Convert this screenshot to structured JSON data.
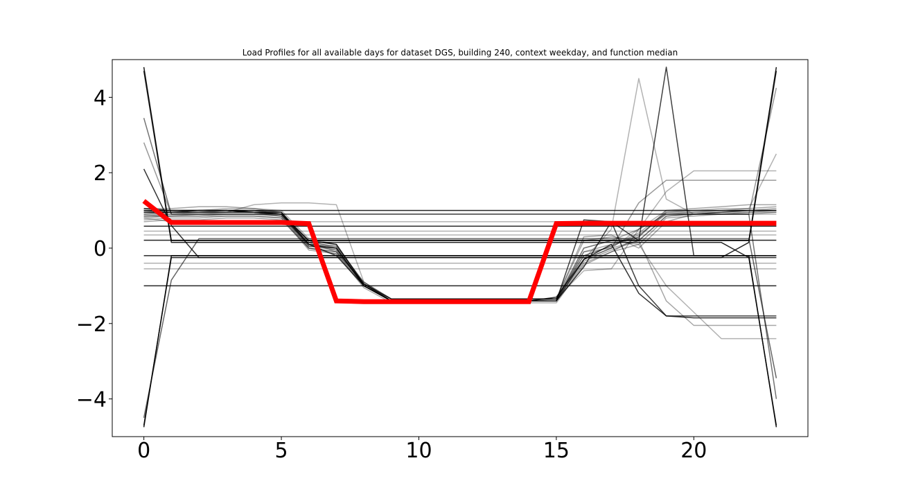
{
  "chart_data": {
    "type": "line",
    "title": "Load Profiles for all available days for dataset DGS, building 240, context weekday, and function median",
    "xlabel": "",
    "ylabel": "",
    "xlim": [
      -1.15,
      24.15
    ],
    "ylim": [
      -5.0,
      5.0
    ],
    "xticks": [
      0,
      5,
      10,
      15,
      20
    ],
    "yticks": [
      4,
      2,
      0,
      -2,
      -4
    ],
    "x_tick_labels": [
      "0",
      "5",
      "10",
      "15",
      "20"
    ],
    "y_tick_labels": [
      "4",
      "2",
      "0",
      "−2",
      "−4"
    ],
    "grid": false,
    "x": [
      0,
      1,
      2,
      3,
      4,
      5,
      6,
      7,
      8,
      9,
      10,
      11,
      12,
      13,
      14,
      15,
      16,
      17,
      18,
      19,
      20,
      21,
      22,
      23
    ],
    "median": {
      "color": "#ff0000",
      "values": [
        1.25,
        0.68,
        0.68,
        0.68,
        0.68,
        0.68,
        0.65,
        -1.4,
        -1.42,
        -1.42,
        -1.42,
        -1.42,
        -1.42,
        -1.42,
        -1.42,
        0.65,
        0.66,
        0.66,
        0.66,
        0.66,
        0.66,
        0.66,
        0.66,
        0.66
      ]
    },
    "series": [
      {
        "opacity": 0.85,
        "values": [
          1.0,
          1.0,
          1.0,
          1.0,
          1.0,
          1.0,
          1.0,
          1.0,
          1.0,
          1.0,
          1.0,
          1.0,
          1.0,
          1.0,
          1.0,
          1.0,
          1.0,
          1.0,
          1.0,
          1.0,
          1.0,
          1.0,
          1.0,
          1.0
        ]
      },
      {
        "opacity": 0.85,
        "values": [
          0.58,
          0.58,
          0.58,
          0.58,
          0.58,
          0.58,
          0.58,
          0.58,
          0.58,
          0.58,
          0.58,
          0.58,
          0.58,
          0.58,
          0.58,
          0.58,
          0.58,
          0.58,
          0.58,
          0.58,
          0.58,
          0.58,
          0.58,
          0.58
        ]
      },
      {
        "opacity": 0.85,
        "values": [
          0.21,
          0.21,
          0.21,
          0.21,
          0.21,
          0.21,
          0.21,
          0.21,
          0.21,
          0.21,
          0.21,
          0.21,
          0.21,
          0.21,
          0.21,
          0.21,
          0.21,
          0.21,
          0.21,
          0.21,
          0.21,
          0.21,
          0.21,
          0.21
        ]
      },
      {
        "opacity": 0.85,
        "values": [
          -0.2,
          -0.2,
          -0.2,
          -0.2,
          -0.2,
          -0.2,
          -0.2,
          -0.2,
          -0.2,
          -0.2,
          -0.2,
          -0.2,
          -0.2,
          -0.2,
          -0.2,
          -0.2,
          -0.2,
          -0.2,
          -0.2,
          -0.2,
          -0.2,
          -0.2,
          -0.2,
          -0.2
        ]
      },
      {
        "opacity": 0.85,
        "values": [
          -1.0,
          -1.0,
          -1.0,
          -1.0,
          -1.0,
          -1.0,
          -1.0,
          -1.0,
          -1.0,
          -1.0,
          -1.0,
          -1.0,
          -1.0,
          -1.0,
          -1.0,
          -1.0,
          -1.0,
          -1.0,
          -1.0,
          -1.0,
          -1.0,
          -1.0,
          -1.0,
          -1.0
        ]
      },
      {
        "opacity": 0.9,
        "values": [
          4.8,
          0.2,
          0.2,
          0.2,
          0.2,
          0.2,
          0.2,
          0.2,
          0.2,
          0.2,
          0.2,
          0.2,
          0.2,
          0.2,
          0.2,
          0.2,
          0.2,
          0.2,
          0.2,
          0.2,
          0.2,
          0.2,
          0.2,
          4.8
        ]
      },
      {
        "opacity": 0.9,
        "values": [
          -4.75,
          -0.2,
          -0.2,
          -0.2,
          -0.2,
          -0.2,
          -0.2,
          -0.2,
          -0.2,
          -0.2,
          -0.2,
          -0.2,
          -0.2,
          -0.2,
          -0.2,
          -0.2,
          -0.2,
          -0.2,
          -0.2,
          -0.2,
          -0.2,
          -0.2,
          -0.2,
          -4.75
        ]
      },
      {
        "opacity": 0.85,
        "values": [
          4.7,
          0.15,
          0.15,
          0.15,
          0.15,
          0.15,
          0.15,
          0.15,
          0.15,
          0.15,
          0.15,
          0.15,
          0.15,
          0.15,
          0.15,
          0.15,
          0.15,
          0.15,
          0.15,
          0.15,
          0.15,
          0.15,
          -0.25,
          -4.7
        ]
      },
      {
        "opacity": 0.85,
        "values": [
          -4.7,
          -0.25,
          -0.25,
          -0.25,
          -0.25,
          -0.25,
          -0.25,
          -0.25,
          -0.25,
          -0.25,
          -0.25,
          -0.25,
          -0.25,
          -0.25,
          -0.25,
          -0.25,
          -0.25,
          -0.25,
          -0.25,
          -0.25,
          -0.25,
          -0.25,
          0.15,
          4.7
        ]
      },
      {
        "opacity": 0.8,
        "values": [
          2.1,
          0.6,
          -0.25,
          -0.25,
          -0.25,
          -0.25,
          -0.25,
          -0.25,
          -0.25,
          -0.25,
          -0.25,
          -0.25,
          -0.25,
          -0.25,
          -0.25,
          -0.25,
          -0.25,
          -0.25,
          -0.25,
          -0.25,
          -0.25,
          -0.25,
          -0.25,
          -0.25
        ]
      },
      {
        "opacity": 0.55,
        "values": [
          3.45,
          0.9,
          0.9,
          0.9,
          0.9,
          0.9,
          0.9,
          0.9,
          0.9,
          0.9,
          0.9,
          0.9,
          0.9,
          0.9,
          0.9,
          0.9,
          0.9,
          0.9,
          0.9,
          0.9,
          0.9,
          0.9,
          0.9,
          -4.0
        ]
      },
      {
        "opacity": 0.6,
        "values": [
          -4.5,
          -0.85,
          0.25,
          0.25,
          0.25,
          0.25,
          0.25,
          0.25,
          0.25,
          0.25,
          0.25,
          0.25,
          0.25,
          0.25,
          0.25,
          0.25,
          0.25,
          0.25,
          0.25,
          0.25,
          0.25,
          0.25,
          0.25,
          -3.45
        ]
      },
      {
        "opacity": 0.4,
        "values": [
          2.8,
          0.9,
          0.9,
          0.9,
          0.9,
          0.9,
          0.9,
          0.9,
          0.9,
          0.9,
          0.9,
          0.9,
          0.9,
          0.9,
          0.9,
          0.9,
          0.9,
          0.9,
          0.9,
          0.9,
          0.9,
          0.9,
          0.9,
          4.25
        ]
      },
      {
        "opacity": 0.75,
        "values": [
          0.95,
          0.95,
          0.95,
          0.95,
          0.95,
          0.9,
          0.1,
          -0.2,
          -1.0,
          -1.4,
          -1.4,
          -1.4,
          -1.4,
          -1.4,
          -1.4,
          -1.4,
          0.75,
          0.7,
          -1.0,
          -1.8,
          -1.8,
          -1.8,
          -1.8,
          -1.8
        ]
      },
      {
        "opacity": 0.8,
        "values": [
          1.05,
          1.0,
          1.0,
          1.0,
          0.95,
          0.95,
          0.1,
          0.0,
          -1.0,
          -1.4,
          -1.4,
          -1.4,
          -1.4,
          -1.4,
          -1.4,
          -1.3,
          -0.3,
          0.1,
          -1.2,
          -1.8,
          -1.85,
          -1.85,
          -1.85,
          -1.85
        ]
      },
      {
        "opacity": 0.35,
        "values": [
          1.05,
          1.05,
          1.1,
          1.1,
          1.05,
          0.95,
          0.15,
          -0.1,
          -0.9,
          -1.35,
          -1.35,
          -1.35,
          -1.35,
          -1.35,
          -1.35,
          -1.35,
          0.2,
          0.3,
          0.2,
          -1.4,
          -2.05,
          -2.05,
          -2.05,
          -2.05
        ]
      },
      {
        "opacity": 0.3,
        "values": [
          0.9,
          0.95,
          0.95,
          1.0,
          1.0,
          0.9,
          0.05,
          -0.05,
          -0.95,
          -1.35,
          -1.35,
          -1.35,
          -1.35,
          -1.35,
          -1.35,
          -1.35,
          0.0,
          0.2,
          0.1,
          -1.0,
          -1.7,
          -2.4,
          -2.4,
          -2.4
        ]
      },
      {
        "opacity": 0.75,
        "values": [
          0.95,
          0.95,
          1.0,
          1.0,
          0.95,
          0.9,
          0.2,
          0.1,
          -0.95,
          -1.4,
          -1.4,
          -1.4,
          -1.4,
          -1.4,
          -1.4,
          -1.4,
          -0.5,
          0.7,
          0.2,
          4.8,
          -0.2,
          -0.2,
          -0.2,
          -0.2
        ]
      },
      {
        "opacity": 0.3,
        "values": [
          0.9,
          0.95,
          0.95,
          1.0,
          1.0,
          0.9,
          0.2,
          0.0,
          -1.0,
          -1.4,
          -1.4,
          -1.4,
          -1.4,
          -1.4,
          -1.4,
          -1.4,
          -0.3,
          0.5,
          4.5,
          1.3,
          0.9,
          0.9,
          0.9,
          0.9
        ]
      },
      {
        "opacity": 0.4,
        "values": [
          1.0,
          1.0,
          1.0,
          1.0,
          1.0,
          0.95,
          0.2,
          0.1,
          -1.0,
          -1.4,
          -1.4,
          -1.4,
          -1.4,
          -1.4,
          -1.4,
          -1.4,
          -0.3,
          0.0,
          1.2,
          1.8,
          1.8,
          1.8,
          1.8,
          1.8
        ]
      },
      {
        "opacity": 0.3,
        "values": [
          0.95,
          1.0,
          1.0,
          1.05,
          1.05,
          1.0,
          0.25,
          0.1,
          -0.95,
          -1.35,
          -1.35,
          -1.35,
          -1.35,
          -1.35,
          -1.35,
          -1.35,
          -0.1,
          0.0,
          0.5,
          1.5,
          2.05,
          2.05,
          2.05,
          2.05
        ]
      },
      {
        "opacity": 0.3,
        "values": [
          0.85,
          0.85,
          0.9,
          0.95,
          1.15,
          1.2,
          1.2,
          1.15,
          -0.9,
          -1.35,
          -1.35,
          -1.35,
          -1.35,
          -1.35,
          -1.35,
          -1.35,
          -0.6,
          -0.55,
          0.5,
          1.0,
          1.0,
          1.05,
          1.05,
          2.5
        ]
      },
      {
        "opacity": 0.3,
        "values": [
          -0.55,
          -0.55,
          -0.55,
          -0.55,
          -0.55,
          -0.55,
          -0.55,
          -0.55,
          -0.55,
          -0.55,
          -0.55,
          -0.55,
          -0.55,
          -0.55,
          -0.55,
          -0.55,
          -0.55,
          -0.55,
          -0.55,
          -0.55,
          -0.55,
          -0.55,
          -0.55,
          -0.55
        ]
      },
      {
        "opacity": 0.3,
        "values": [
          -0.4,
          -0.4,
          -0.4,
          -0.4,
          -0.4,
          -0.4,
          -0.4,
          -0.4,
          -0.4,
          -0.4,
          -0.4,
          -0.4,
          -0.4,
          -0.4,
          -0.4,
          -0.4,
          -0.4,
          -0.4,
          -0.4,
          -0.4,
          -0.4,
          -0.4,
          -0.4,
          -0.4
        ]
      },
      {
        "opacity": 0.3,
        "values": [
          0.35,
          0.35,
          0.35,
          0.35,
          0.35,
          0.35,
          0.35,
          0.35,
          0.35,
          0.35,
          0.35,
          0.35,
          0.35,
          0.35,
          0.35,
          0.35,
          0.35,
          0.35,
          0.35,
          0.35,
          0.35,
          0.35,
          0.35,
          0.35
        ]
      },
      {
        "opacity": 0.3,
        "values": [
          0.45,
          0.45,
          0.45,
          0.45,
          0.45,
          0.45,
          0.45,
          0.45,
          0.45,
          0.45,
          0.45,
          0.45,
          0.45,
          0.45,
          0.45,
          0.45,
          0.45,
          0.45,
          0.45,
          0.45,
          0.45,
          0.45,
          0.45,
          0.45
        ]
      },
      {
        "opacity": 0.3,
        "values": [
          0.8,
          0.7,
          0.7,
          0.7,
          0.7,
          0.7,
          0.7,
          0.7,
          0.7,
          0.7,
          0.7,
          0.7,
          0.7,
          0.7,
          0.7,
          0.7,
          0.7,
          0.7,
          0.7,
          0.7,
          0.7,
          0.7,
          0.7,
          0.7
        ]
      },
      {
        "opacity": 0.35,
        "values": [
          0.75,
          0.8,
          0.8,
          0.85,
          0.85,
          0.8,
          0.0,
          -0.15,
          -1.0,
          -1.4,
          -1.4,
          -1.4,
          -1.4,
          -1.4,
          -1.4,
          -1.4,
          -0.4,
          -0.1,
          0.3,
          1.0,
          1.05,
          1.1,
          1.15,
          1.15
        ]
      },
      {
        "opacity": 0.35,
        "values": [
          0.85,
          0.85,
          0.85,
          0.9,
          0.9,
          0.85,
          0.1,
          -0.05,
          -0.95,
          -1.35,
          -1.35,
          -1.35,
          -1.35,
          -1.35,
          -1.35,
          -1.35,
          -0.2,
          0.05,
          0.4,
          0.95,
          1.0,
          1.0,
          1.05,
          1.1
        ]
      },
      {
        "opacity": 0.35,
        "values": [
          0.9,
          0.9,
          0.95,
          0.95,
          0.95,
          0.85,
          0.05,
          0.0,
          -1.0,
          -1.4,
          -1.4,
          -1.4,
          -1.4,
          -1.4,
          -1.4,
          -1.4,
          0.0,
          0.2,
          0.5,
          0.9,
          0.9,
          0.95,
          1.0,
          1.0
        ]
      },
      {
        "opacity": 0.35,
        "values": [
          0.7,
          0.75,
          0.75,
          0.8,
          0.8,
          0.75,
          0.0,
          -0.1,
          -0.95,
          -1.35,
          -1.35,
          -1.35,
          -1.35,
          -1.35,
          -1.35,
          -1.35,
          -0.35,
          -0.05,
          0.2,
          0.85,
          0.9,
          0.95,
          0.95,
          1.0
        ]
      },
      {
        "opacity": 0.35,
        "values": [
          1.0,
          1.0,
          1.0,
          1.0,
          1.0,
          0.95,
          0.15,
          0.05,
          -0.9,
          -1.4,
          -1.4,
          -1.4,
          -1.4,
          -1.4,
          -1.4,
          -1.35,
          0.3,
          0.35,
          0.0,
          0.7,
          0.9,
          0.95,
          1.0,
          1.05
        ]
      },
      {
        "opacity": 0.35,
        "values": [
          0.8,
          0.85,
          0.85,
          0.85,
          0.85,
          0.8,
          -0.05,
          -0.15,
          -1.05,
          -1.45,
          -1.45,
          -1.45,
          -1.45,
          -1.45,
          -1.45,
          -1.45,
          -0.45,
          -0.1,
          0.1,
          0.8,
          0.85,
          0.9,
          0.9,
          0.95
        ]
      },
      {
        "opacity": 0.35,
        "values": [
          0.95,
          0.95,
          0.95,
          0.95,
          0.95,
          0.9,
          0.1,
          0.05,
          -0.95,
          -1.4,
          -1.4,
          -1.4,
          -1.4,
          -1.4,
          -1.4,
          -1.4,
          -0.1,
          0.1,
          0.3,
          0.95,
          0.95,
          0.95,
          1.0,
          1.0
        ]
      },
      {
        "opacity": 0.35,
        "values": [
          0.85,
          0.9,
          0.9,
          0.9,
          0.9,
          0.85,
          0.0,
          -0.1,
          -1.0,
          -1.4,
          -1.4,
          -1.4,
          -1.4,
          -1.4,
          -1.4,
          -1.4,
          -0.3,
          0.0,
          0.2,
          0.85,
          0.9,
          0.9,
          0.95,
          0.95
        ]
      },
      {
        "opacity": 0.35,
        "values": [
          1.0,
          0.95,
          0.95,
          0.95,
          0.95,
          0.9,
          0.05,
          0.0,
          -0.95,
          -1.35,
          -1.35,
          -1.35,
          -1.35,
          -1.35,
          -1.35,
          -1.35,
          -0.2,
          0.05,
          0.35,
          0.9,
          0.95,
          1.0,
          1.0,
          1.0
        ]
      }
    ]
  }
}
